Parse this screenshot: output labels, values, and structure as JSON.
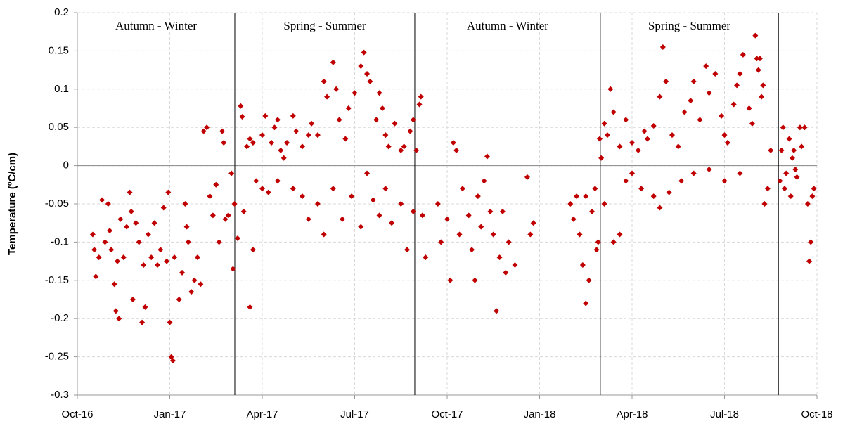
{
  "chart_data": {
    "type": "scatter",
    "y_label": "Temperature (ºC/cm)",
    "xlim": [
      0,
      24
    ],
    "xticks": [
      {
        "value": 0,
        "label": "Oct-16"
      },
      {
        "value": 3,
        "label": "Jan-17"
      },
      {
        "value": 6,
        "label": "Apr-17"
      },
      {
        "value": 9,
        "label": "Jul-17"
      },
      {
        "value": 12,
        "label": "Oct-17"
      },
      {
        "value": 15,
        "label": "Jan-18"
      },
      {
        "value": 18,
        "label": "Apr-18"
      },
      {
        "value": 21,
        "label": "Jul-18"
      },
      {
        "value": 24,
        "label": "Oct-18"
      }
    ],
    "ylim": [
      -0.3,
      0.2
    ],
    "yticks": [
      0.2,
      0.15,
      0.1,
      0.05,
      0,
      -0.05,
      -0.1,
      -0.15,
      -0.2,
      -0.25,
      -0.3
    ],
    "grid": true,
    "dividers": [
      5.11,
      10.95,
      16.97,
      22.75
    ],
    "annotations": [
      "Autumn - Winter",
      "Spring - Summer",
      "Autumn - Winter",
      "Spring - Summer"
    ],
    "series": [
      {
        "color": "#c00000",
        "x": [
          0.5,
          0.55,
          0.6,
          0.7,
          0.8,
          0.9,
          1.0,
          1.05,
          1.1,
          1.2,
          1.25,
          1.3,
          1.35,
          1.4,
          1.5,
          1.6,
          1.7,
          1.75,
          1.8,
          1.9,
          2.0,
          2.1,
          2.15,
          2.2,
          2.3,
          2.4,
          2.5,
          2.6,
          2.7,
          2.8,
          2.9,
          2.95,
          3.0,
          3.05,
          3.1,
          3.15,
          3.3,
          3.4,
          3.5,
          3.55,
          3.6,
          3.7,
          3.8,
          3.9,
          4.0,
          4.1,
          4.2,
          4.3,
          4.4,
          4.5,
          4.6,
          4.7,
          4.75,
          4.8,
          4.9,
          5.0,
          5.05,
          5.1,
          5.2,
          5.3,
          5.35,
          5.4,
          5.5,
          5.6,
          5.7,
          6.0,
          6.1,
          6.3,
          6.4,
          6.5,
          6.6,
          6.7,
          6.8,
          7.0,
          7.1,
          7.3,
          7.5,
          7.6,
          7.8,
          8.0,
          8.1,
          8.3,
          8.4,
          8.5,
          8.7,
          8.8,
          9.0,
          9.2,
          9.3,
          9.4,
          9.5,
          9.7,
          9.8,
          9.9,
          10.0,
          10.1,
          10.3,
          10.5,
          10.6,
          10.8,
          10.9,
          11.0,
          11.1,
          11.15,
          5.6,
          5.7,
          5.8,
          6.0,
          6.2,
          6.5,
          7.0,
          7.3,
          7.5,
          7.8,
          8.0,
          8.3,
          8.6,
          8.9,
          9.2,
          9.4,
          9.6,
          9.8,
          10.0,
          10.2,
          10.5,
          10.7,
          10.9,
          11.2,
          11.3,
          11.7,
          11.8,
          12.0,
          12.1,
          12.2,
          12.3,
          12.4,
          12.5,
          12.7,
          12.8,
          12.9,
          13.0,
          13.1,
          13.2,
          13.3,
          13.4,
          13.5,
          13.6,
          13.7,
          13.8,
          13.9,
          14.0,
          14.2,
          14.6,
          14.7,
          14.8,
          16.0,
          16.1,
          16.2,
          16.3,
          16.4,
          16.5,
          16.6,
          16.7,
          16.8,
          16.9,
          16.95,
          16.5,
          16.85,
          17.0,
          17.1,
          17.2,
          17.3,
          17.4,
          17.6,
          17.8,
          18.0,
          18.2,
          18.4,
          18.5,
          18.7,
          18.9,
          19.0,
          19.1,
          19.3,
          19.5,
          19.7,
          19.9,
          20.0,
          20.2,
          20.4,
          20.5,
          20.7,
          20.9,
          21.0,
          21.1,
          21.3,
          21.4,
          21.5,
          21.6,
          21.8,
          21.9,
          22.1,
          22.2,
          22.0,
          22.05,
          22.15,
          22.25,
          17.1,
          17.4,
          17.6,
          17.8,
          18.0,
          18.3,
          18.7,
          18.9,
          19.2,
          19.6,
          20.0,
          20.5,
          21.0,
          21.5,
          22.3,
          22.4,
          22.5,
          22.8,
          22.85,
          22.9,
          22.95,
          23.0,
          23.1,
          23.15,
          23.2,
          23.25,
          23.3,
          23.35,
          23.45,
          23.5,
          23.6,
          23.7,
          23.75,
          23.8,
          23.85,
          23.9
        ],
        "values": [
          -0.09,
          -0.11,
          -0.145,
          -0.12,
          -0.045,
          -0.1,
          -0.05,
          -0.085,
          -0.11,
          -0.155,
          -0.19,
          -0.125,
          -0.2,
          -0.07,
          -0.12,
          -0.08,
          -0.035,
          -0.06,
          -0.175,
          -0.075,
          -0.1,
          -0.205,
          -0.13,
          -0.185,
          -0.09,
          -0.12,
          -0.075,
          -0.13,
          -0.11,
          -0.055,
          -0.125,
          -0.035,
          -0.205,
          -0.25,
          -0.255,
          -0.12,
          -0.175,
          -0.14,
          -0.05,
          -0.08,
          -0.1,
          -0.165,
          -0.15,
          -0.12,
          -0.155,
          0.045,
          0.05,
          -0.04,
          -0.065,
          -0.025,
          -0.1,
          0.045,
          0.03,
          -0.07,
          -0.065,
          -0.01,
          -0.135,
          -0.05,
          -0.095,
          0.078,
          0.064,
          -0.06,
          0.025,
          0.035,
          0.03,
          0.04,
          0.065,
          0.03,
          0.05,
          0.06,
          0.02,
          0.01,
          0.03,
          0.065,
          0.045,
          0.025,
          0.04,
          0.055,
          0.04,
          0.11,
          0.09,
          0.135,
          0.1,
          0.06,
          0.035,
          0.075,
          0.095,
          0.13,
          0.148,
          0.12,
          0.11,
          0.06,
          0.095,
          0.075,
          0.04,
          0.025,
          0.055,
          0.02,
          0.025,
          0.045,
          0.06,
          0.02,
          0.08,
          0.09,
          -0.185,
          -0.11,
          -0.02,
          -0.03,
          -0.035,
          -0.02,
          -0.03,
          -0.04,
          -0.07,
          -0.05,
          -0.09,
          -0.03,
          -0.07,
          -0.04,
          -0.08,
          -0.01,
          -0.045,
          -0.065,
          -0.03,
          -0.075,
          -0.05,
          -0.11,
          -0.06,
          -0.065,
          -0.12,
          -0.05,
          -0.1,
          -0.07,
          -0.15,
          0.03,
          0.02,
          -0.09,
          -0.03,
          -0.065,
          -0.11,
          -0.15,
          -0.04,
          -0.08,
          -0.02,
          0.012,
          -0.06,
          -0.09,
          -0.19,
          -0.12,
          -0.06,
          -0.14,
          -0.1,
          -0.13,
          -0.015,
          -0.09,
          -0.075,
          -0.05,
          -0.07,
          -0.04,
          -0.09,
          -0.13,
          -0.18,
          -0.15,
          -0.06,
          -0.03,
          -0.1,
          0.035,
          -0.04,
          -0.11,
          0.01,
          0.055,
          0.04,
          0.1,
          0.07,
          0.025,
          0.06,
          0.03,
          0.02,
          0.045,
          0.035,
          0.052,
          0.09,
          0.155,
          0.11,
          0.04,
          0.025,
          0.07,
          0.085,
          0.11,
          0.06,
          0.13,
          0.095,
          0.12,
          0.065,
          0.04,
          0.03,
          0.08,
          0.105,
          0.12,
          0.145,
          0.075,
          0.055,
          0.125,
          0.09,
          0.17,
          0.14,
          0.14,
          0.105,
          -0.05,
          -0.1,
          -0.09,
          -0.02,
          -0.01,
          -0.03,
          -0.04,
          -0.055,
          -0.035,
          -0.02,
          -0.01,
          -0.005,
          -0.02,
          -0.01,
          -0.05,
          -0.03,
          0.02,
          -0.02,
          0.02,
          0.05,
          -0.03,
          -0.01,
          0.035,
          -0.04,
          0.01,
          0.02,
          -0.005,
          -0.015,
          0.05,
          0.025,
          0.05,
          -0.05,
          -0.125,
          -0.1,
          -0.04,
          -0.03
        ]
      }
    ]
  }
}
